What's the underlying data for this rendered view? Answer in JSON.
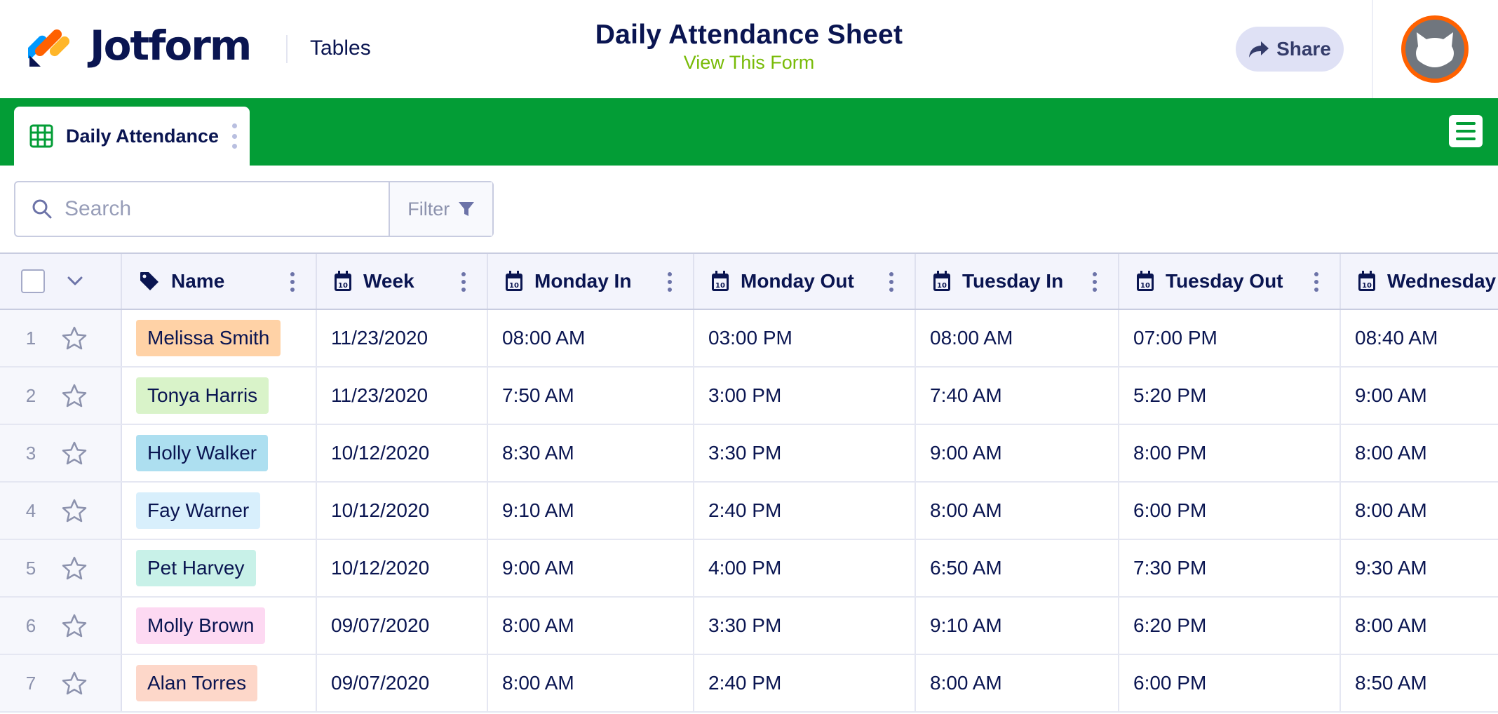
{
  "header": {
    "brand": "Jotform",
    "app_label": "Tables",
    "title": "Daily Attendance Sheet",
    "view_form_link": "View This Form",
    "share_label": "Share",
    "avatar_icon": "cat-avatar-icon"
  },
  "tabs": [
    {
      "label": "Daily Attendance",
      "icon": "table-grid-icon",
      "active": true
    }
  ],
  "toolbar": {
    "search_placeholder": "Search",
    "filter_label": "Filter"
  },
  "table": {
    "columns": [
      {
        "label": "Name",
        "icon": "tag-icon"
      },
      {
        "label": "Week",
        "icon": "calendar-icon"
      },
      {
        "label": "Monday In",
        "icon": "calendar-icon"
      },
      {
        "label": "Monday Out",
        "icon": "calendar-icon"
      },
      {
        "label": "Tuesday In",
        "icon": "calendar-icon"
      },
      {
        "label": "Tuesday Out",
        "icon": "calendar-icon"
      },
      {
        "label": "Wednesday",
        "icon": "calendar-icon"
      }
    ],
    "rows": [
      {
        "num": "1",
        "name": "Melissa Smith",
        "name_color": "#ffd2a6",
        "week": "11/23/2020",
        "mon_in": "08:00 AM",
        "mon_out": "03:00 PM",
        "tue_in": "08:00 AM",
        "tue_out": "07:00 PM",
        "wed": "08:40 AM"
      },
      {
        "num": "2",
        "name": "Tonya Harris",
        "name_color": "#d9f3c9",
        "week": "11/23/2020",
        "mon_in": "7:50 AM",
        "mon_out": "3:00 PM",
        "tue_in": "7:40 AM",
        "tue_out": "5:20 PM",
        "wed": "9:00 AM"
      },
      {
        "num": "3",
        "name": "Holly Walker",
        "name_color": "#addff0",
        "week": "10/12/2020",
        "mon_in": "8:30 AM",
        "mon_out": "3:30 PM",
        "tue_in": "9:00 AM",
        "tue_out": "8:00 PM",
        "wed": "8:00 AM"
      },
      {
        "num": "4",
        "name": "Fay Warner",
        "name_color": "#d8effc",
        "week": "10/12/2020",
        "mon_in": "9:10 AM",
        "mon_out": "2:40 PM",
        "tue_in": "8:00 AM",
        "tue_out": "6:00 PM",
        "wed": "8:00 AM"
      },
      {
        "num": "5",
        "name": "Pet Harvey",
        "name_color": "#c8f1e8",
        "week": "10/12/2020",
        "mon_in": "9:00 AM",
        "mon_out": "4:00 PM",
        "tue_in": "6:50 AM",
        "tue_out": "7:30 PM",
        "wed": "9:30 AM"
      },
      {
        "num": "6",
        "name": "Molly Brown",
        "name_color": "#fdd9f2",
        "week": "09/07/2020",
        "mon_in": "8:00 AM",
        "mon_out": "3:30 PM",
        "tue_in": "9:10 AM",
        "tue_out": "6:20 PM",
        "wed": "8:00 AM"
      },
      {
        "num": "7",
        "name": "Alan Torres",
        "name_color": "#fdd7c9",
        "week": "09/07/2020",
        "mon_in": "8:00 AM",
        "mon_out": "2:40 PM",
        "tue_in": "8:00 AM",
        "tue_out": "6:00 PM",
        "wed": "8:50 AM"
      }
    ]
  },
  "colors": {
    "brand_green": "#039d36",
    "accent_link": "#78bb07",
    "text_navy": "#0a1551",
    "avatar_ring": "#ff6100"
  }
}
